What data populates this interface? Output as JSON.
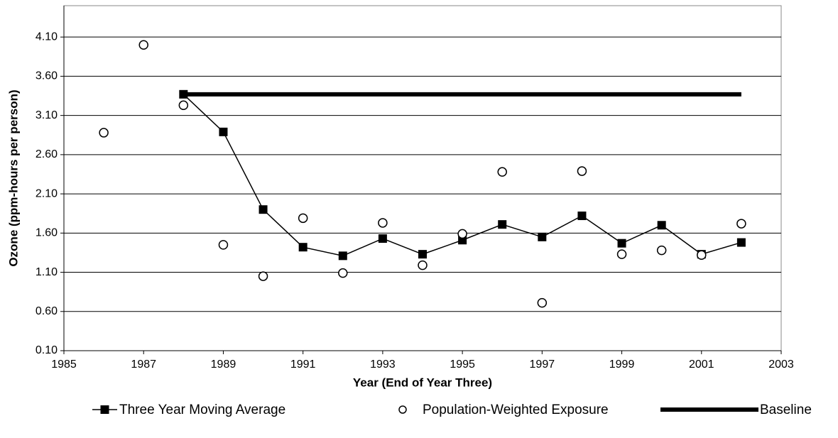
{
  "chart_data": {
    "type": "line",
    "x_label": "Year (End of Year Three)",
    "y_label": "Ozone (ppm-hours per person)",
    "xlim": [
      1985,
      2003
    ],
    "xticks": [
      1985,
      1987,
      1989,
      1991,
      1993,
      1995,
      1997,
      1999,
      2001,
      2003
    ],
    "ylim": [
      0.1,
      4.5
    ],
    "yticks": [
      {
        "value": 0.1,
        "label": "0.10"
      },
      {
        "value": 0.6,
        "label": "0.60"
      },
      {
        "value": 1.1,
        "label": "1.10"
      },
      {
        "value": 1.6,
        "label": "1.60"
      },
      {
        "value": 2.1,
        "label": "2.10"
      },
      {
        "value": 2.6,
        "label": "2.60"
      },
      {
        "value": 3.1,
        "label": "3.10"
      },
      {
        "value": 3.6,
        "label": "3.60"
      },
      {
        "value": 4.1,
        "label": "4.10"
      }
    ],
    "grid": true,
    "legend": "bottom",
    "series": [
      {
        "name": "Three Year Moving Average",
        "color": "#000000",
        "style": "line-marker",
        "x": [
          1988,
          1989,
          1990,
          1991,
          1992,
          1993,
          1994,
          1995,
          1996,
          1997,
          1998,
          1999,
          2000,
          2001,
          2002
        ],
        "values": [
          3.37,
          2.89,
          1.9,
          1.42,
          1.31,
          1.53,
          1.33,
          1.51,
          1.71,
          1.55,
          1.82,
          1.47,
          1.7,
          1.33,
          1.48
        ]
      },
      {
        "name": "Population-Weighted Exposure",
        "color": "#000000",
        "style": "marker",
        "x": [
          1986,
          1987,
          1988,
          1989,
          1990,
          1991,
          1992,
          1993,
          1994,
          1995,
          1996,
          1997,
          1998,
          1999,
          2000,
          2001,
          2002
        ],
        "values": [
          2.88,
          4.0,
          3.23,
          1.45,
          1.05,
          1.79,
          1.09,
          1.73,
          1.19,
          1.59,
          2.38,
          0.71,
          2.39,
          1.33,
          1.38,
          1.32,
          1.72
        ]
      },
      {
        "name": "Baseline",
        "color": "#000000",
        "style": "line",
        "x": [
          1988,
          2002
        ],
        "values": [
          3.37,
          3.37
        ]
      }
    ]
  }
}
